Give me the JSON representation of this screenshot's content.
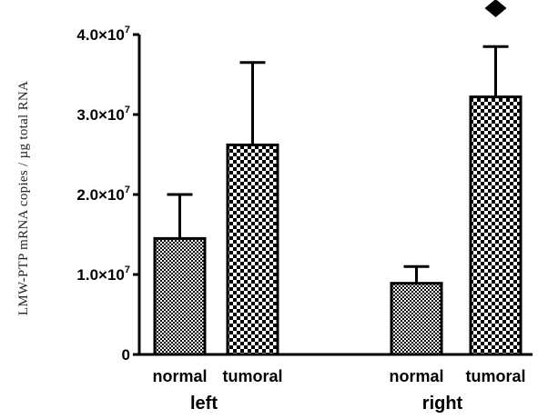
{
  "chart_data": {
    "type": "bar",
    "ylabel": "LMW-PTP mRNA copies / µg total RNA",
    "ylim": [
      0,
      40000000
    ],
    "y_ticks": [
      {
        "value": 0,
        "mantissa": "0",
        "exp": ""
      },
      {
        "value": 10000000,
        "mantissa": "1.0×10",
        "exp": "7"
      },
      {
        "value": 20000000,
        "mantissa": "2.0×10",
        "exp": "7"
      },
      {
        "value": 30000000,
        "mantissa": "3.0×10",
        "exp": "7"
      },
      {
        "value": 40000000,
        "mantissa": "4.0×10",
        "exp": "7"
      }
    ],
    "groups": [
      {
        "label": "left",
        "bars": [
          {
            "label": "normal",
            "value": 14500000,
            "error": 5500000,
            "pattern": "fine"
          },
          {
            "label": "tumoral",
            "value": 26200000,
            "error": 10300000,
            "pattern": "coarse"
          }
        ]
      },
      {
        "label": "right",
        "bars": [
          {
            "label": "normal",
            "value": 8900000,
            "error": 2100000,
            "pattern": "fine"
          },
          {
            "label": "tumoral",
            "value": 32200000,
            "error": 6300000,
            "pattern": "coarse",
            "marker": "diamond"
          }
        ]
      }
    ],
    "colors": {
      "bar_edge": "#000000",
      "axis": "#000000"
    }
  }
}
